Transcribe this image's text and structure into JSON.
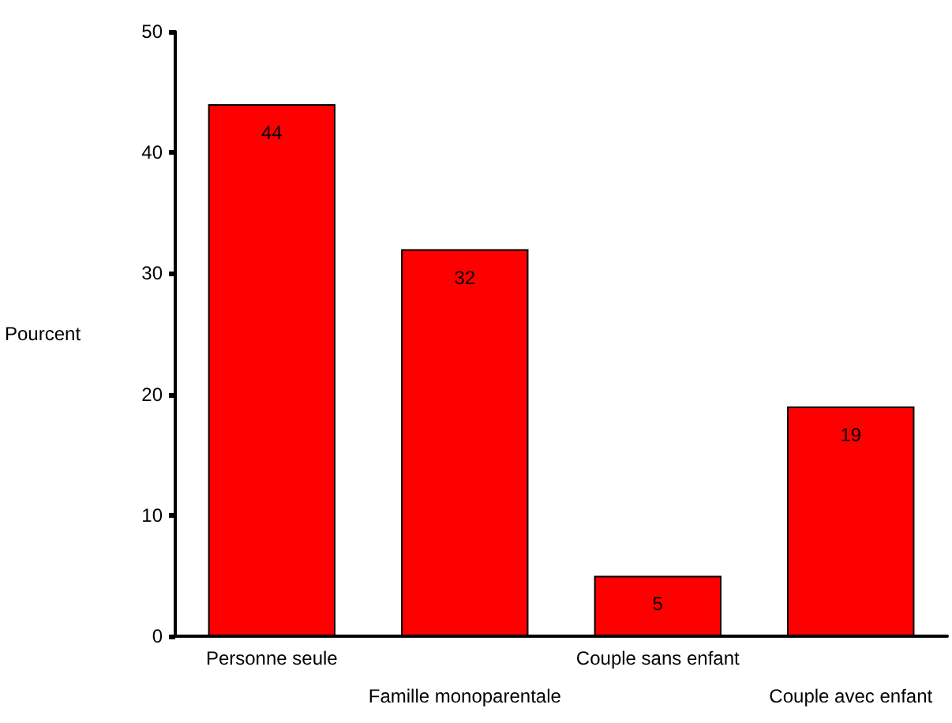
{
  "chart_data": {
    "type": "bar",
    "ylabel": "Pourcent",
    "categories": [
      "Personne seule",
      "Famille monoparentale",
      "Couple sans enfant",
      "Couple avec enfant"
    ],
    "values": [
      44,
      32,
      5,
      19
    ],
    "data_labels": true,
    "color": "#ff0000",
    "ylim": [
      0,
      50
    ],
    "yticks": [
      0,
      10,
      20,
      30,
      40,
      50
    ]
  }
}
